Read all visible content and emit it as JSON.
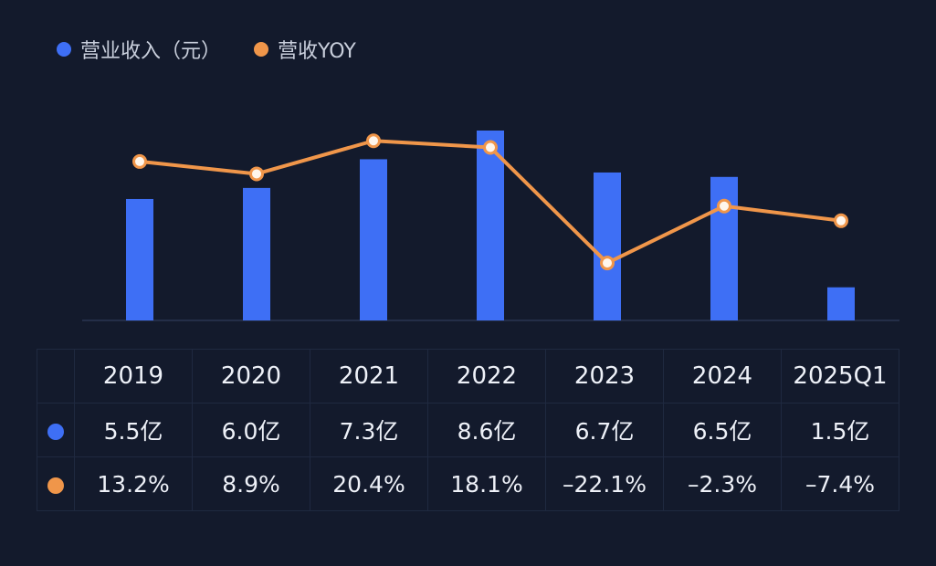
{
  "colors": {
    "bar": "#3e6ff5",
    "line": "#f0964a",
    "background": "#131a2c"
  },
  "legend": {
    "revenue_label": "营业收入（元）",
    "yoy_label": "营收YOY"
  },
  "chart_data": {
    "type": "bar+line",
    "categories": [
      "2019",
      "2020",
      "2021",
      "2022",
      "2023",
      "2024",
      "2025Q1"
    ],
    "series": [
      {
        "name": "营业收入（元）",
        "type": "bar",
        "unit": "亿",
        "values": [
          5.5,
          6.0,
          7.3,
          8.6,
          6.7,
          6.5,
          1.5
        ]
      },
      {
        "name": "营收YOY",
        "type": "line",
        "unit": "%",
        "values": [
          13.2,
          8.9,
          20.4,
          18.1,
          -22.1,
          -2.3,
          -7.4
        ]
      }
    ],
    "bar_ylim": [
      0,
      8.6
    ],
    "line_ylim": [
      -31.6,
      22.7
    ]
  },
  "table": {
    "years": [
      "2019",
      "2020",
      "2021",
      "2022",
      "2023",
      "2024",
      "2025Q1"
    ],
    "revenue": [
      "5.5亿",
      "6.0亿",
      "7.3亿",
      "8.6亿",
      "6.7亿",
      "6.5亿",
      "1.5亿"
    ],
    "yoy": [
      "13.2%",
      "8.9%",
      "20.4%",
      "18.1%",
      "–22.1%",
      "–2.3%",
      "–7.4%"
    ]
  }
}
